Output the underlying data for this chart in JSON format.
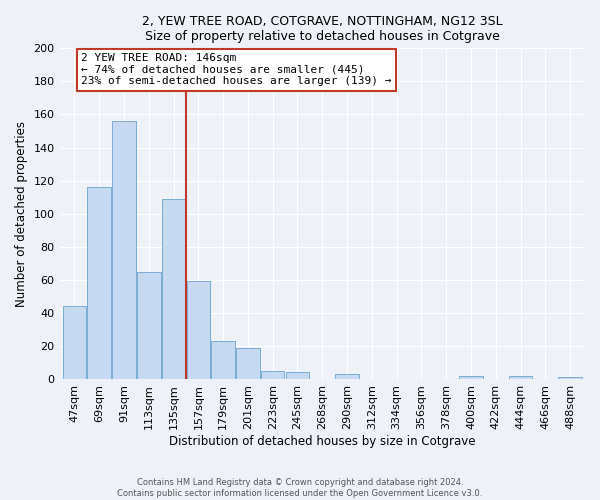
{
  "title": "2, YEW TREE ROAD, COTGRAVE, NOTTINGHAM, NG12 3SL",
  "subtitle": "Size of property relative to detached houses in Cotgrave",
  "xlabel": "Distribution of detached houses by size in Cotgrave",
  "ylabel": "Number of detached properties",
  "bar_labels": [
    "47sqm",
    "69sqm",
    "91sqm",
    "113sqm",
    "135sqm",
    "157sqm",
    "179sqm",
    "201sqm",
    "223sqm",
    "245sqm",
    "268sqm",
    "290sqm",
    "312sqm",
    "334sqm",
    "356sqm",
    "378sqm",
    "400sqm",
    "422sqm",
    "444sqm",
    "466sqm",
    "488sqm"
  ],
  "bar_values": [
    44,
    116,
    156,
    65,
    109,
    59,
    23,
    19,
    5,
    4,
    0,
    3,
    0,
    0,
    0,
    0,
    2,
    0,
    2,
    0,
    1
  ],
  "bar_color": "#c6d9f0",
  "bar_edge_color": "#7aadd4",
  "property_line_color": "#c0392b",
  "annotation_text": "2 YEW TREE ROAD: 146sqm\n← 74% of detached houses are smaller (445)\n23% of semi-detached houses are larger (139) →",
  "annotation_box_color": "#ffffff",
  "annotation_box_edge": "#c0392b",
  "ylim": [
    0,
    200
  ],
  "yticks": [
    0,
    20,
    40,
    60,
    80,
    100,
    120,
    140,
    160,
    180,
    200
  ],
  "footer_line1": "Contains HM Land Registry data © Crown copyright and database right 2024.",
  "footer_line2": "Contains public sector information licensed under the Open Government Licence v3.0.",
  "bg_color": "#eef2f8"
}
